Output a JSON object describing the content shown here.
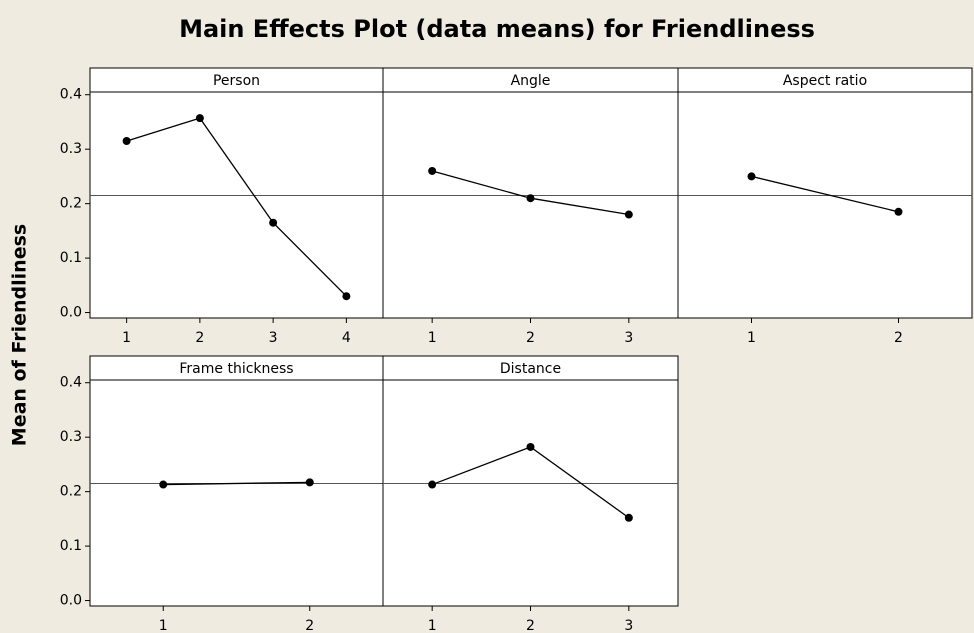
{
  "title": "Main Effects Plot (data means) for Friendliness",
  "ylabel": "Mean of Friendliness",
  "reference_line": 0.215,
  "ylim": [
    -0.01,
    0.405
  ],
  "yticks": [
    {
      "value": 0,
      "label": "0.0"
    },
    0.1,
    0.2,
    0.3,
    0.4
  ],
  "chart_data": [
    {
      "type": "line",
      "title": "Person",
      "x": [
        1,
        2,
        3,
        4
      ],
      "values": [
        0.315,
        0.357,
        0.165,
        0.03
      ],
      "xlim": [
        0.5,
        4.5
      ],
      "xticks": [
        1,
        2,
        3,
        4
      ],
      "color": "#000000"
    },
    {
      "type": "line",
      "title": "Angle",
      "x": [
        1,
        2,
        3
      ],
      "values": [
        0.26,
        0.21,
        0.18
      ],
      "xlim": [
        0.5,
        3.5
      ],
      "xticks": [
        1,
        2,
        3
      ],
      "color": "#000000"
    },
    {
      "type": "line",
      "title": "Aspect ratio",
      "x": [
        1,
        2
      ],
      "values": [
        0.25,
        0.185
      ],
      "xlim": [
        0.5,
        2.5
      ],
      "xticks": [
        1,
        2
      ],
      "color": "#000000"
    },
    {
      "type": "line",
      "title": "Frame thickness",
      "x": [
        1,
        2
      ],
      "values": [
        0.213,
        0.217
      ],
      "xlim": [
        0.5,
        2.5
      ],
      "xticks": [
        1,
        2
      ],
      "color": "#000000"
    },
    {
      "type": "line",
      "title": "Distance",
      "x": [
        1,
        2,
        3
      ],
      "values": [
        0.213,
        0.282,
        0.152
      ],
      "xlim": [
        0.5,
        3.5
      ],
      "xticks": [
        1,
        2,
        3
      ],
      "color": "#000000"
    }
  ]
}
